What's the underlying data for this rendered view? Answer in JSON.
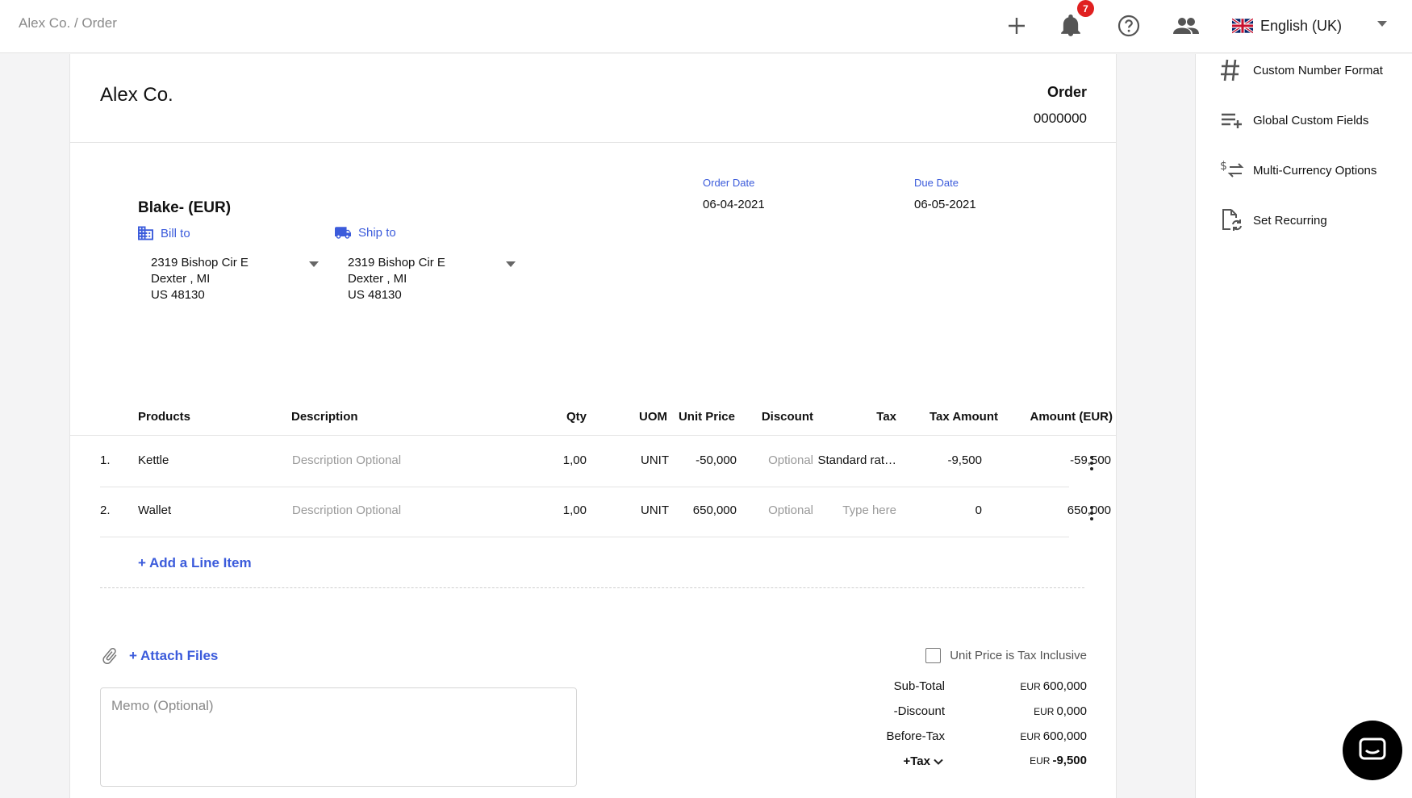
{
  "breadcrumb": "Alex Co. / Order",
  "header": {
    "notification_count": "7",
    "language": "English (UK)"
  },
  "document": {
    "company": "Alex Co.",
    "type": "Order",
    "number": "0000000",
    "order_date_label": "Order Date",
    "order_date": "06-04-2021",
    "due_date_label": "Due Date",
    "due_date": "06-05-2021",
    "customer": "Blake- (EUR)",
    "bill_to_label": "Bill to",
    "ship_to_label": "Ship to",
    "bill_to": {
      "line1": "2319 Bishop Cir E",
      "line2": "Dexter , MI",
      "line3": "US 48130"
    },
    "ship_to": {
      "line1": "2319 Bishop Cir E",
      "line2": "Dexter , MI",
      "line3": "US 48130"
    }
  },
  "table": {
    "headers": {
      "products": "Products",
      "description": "Description",
      "qty": "Qty",
      "uom": "UOM",
      "unit_price": "Unit Price",
      "discount": "Discount",
      "tax": "Tax",
      "tax_amount": "Tax Amount",
      "amount": "Amount (EUR)"
    },
    "rows": [
      {
        "num": "1.",
        "product": "Kettle",
        "description": "Description Optional",
        "qty": "1,00",
        "uom": "UNIT",
        "unit_price": "-50,000",
        "discount": "Optional",
        "tax": "Standard rat…",
        "tax_amount": "-9,500",
        "amount": "-59,500"
      },
      {
        "num": "2.",
        "product": "Wallet",
        "description": "Description Optional",
        "qty": "1,00",
        "uom": "UNIT",
        "unit_price": "650,000",
        "discount": "Optional",
        "tax": "Type here",
        "tax_amount": "0",
        "amount": "650,000"
      }
    ],
    "add_line": "+ Add a Line Item"
  },
  "attach_label": "+ Attach Files",
  "memo_placeholder": "Memo (Optional)",
  "tax_inclusive_label": "Unit Price is Tax Inclusive",
  "totals": {
    "currency": "EUR",
    "subtotal_label": "Sub-Total",
    "subtotal": "600,000",
    "discount_label": "-Discount",
    "discount": "0,000",
    "before_tax_label": "Before-Tax",
    "before_tax": "600,000",
    "tax_label": "+Tax",
    "tax": "-9,500"
  },
  "panel": {
    "items": [
      {
        "label": "Custom Number Format",
        "icon": "hash-icon"
      },
      {
        "label": "Global Custom Fields",
        "icon": "playlist-add-icon"
      },
      {
        "label": "Multi-Currency Options",
        "icon": "currency-exchange-icon"
      },
      {
        "label": "Set Recurring",
        "icon": "recurring-document-icon"
      }
    ]
  }
}
